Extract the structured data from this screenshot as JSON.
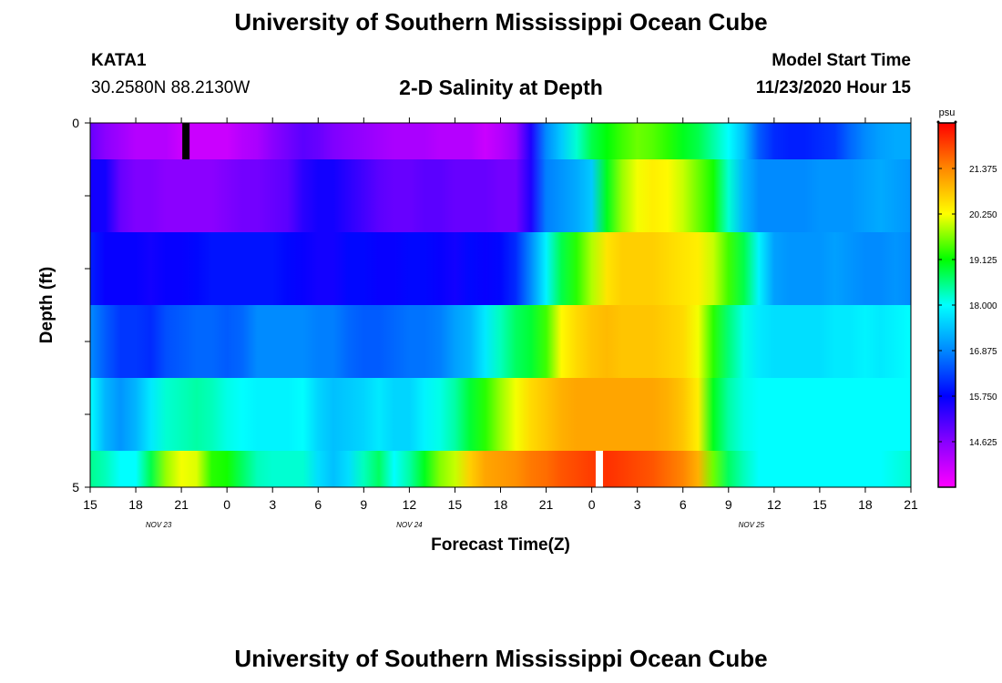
{
  "header": {
    "title": "University of Southern Mississippi Ocean Cube",
    "station_id": "KATA1",
    "station_coords": "30.2580N 88.2130W",
    "subtitle": "2-D Salinity at Depth",
    "model_start_label": "Model Start Time",
    "model_start_value": "11/23/2020 Hour 15"
  },
  "footer": {
    "title": "University of Southern Mississippi Ocean Cube"
  },
  "chart_data": {
    "type": "heatmap",
    "title": "2-D Salinity at Depth",
    "xlabel": "Forecast Time(Z)",
    "ylabel": "Depth (ft)",
    "x_ticks": [
      "15",
      "18",
      "21",
      "0",
      "3",
      "6",
      "9",
      "12",
      "15",
      "18",
      "21",
      "0",
      "3",
      "6",
      "9",
      "12",
      "15",
      "18",
      "21"
    ],
    "x_tick_hours": [
      0,
      3,
      6,
      9,
      12,
      15,
      18,
      21,
      24,
      27,
      30,
      33,
      36,
      39,
      42,
      45,
      48,
      51,
      54
    ],
    "date_labels": [
      {
        "text": "NOV 23",
        "hour": 4.5
      },
      {
        "text": "NOV 24",
        "hour": 21
      },
      {
        "text": "NOV 25",
        "hour": 43.5
      }
    ],
    "y_ticks": [
      "0",
      "5"
    ],
    "ylim": [
      0,
      5
    ],
    "xlim_hours": [
      0,
      54
    ],
    "colorbar": {
      "unit": "psu",
      "labels": [
        "21.375",
        "20.250",
        "19.125",
        "18.000",
        "16.875",
        "15.750",
        "14.625"
      ],
      "range": [
        13.5,
        22.5
      ],
      "colors": [
        "#ff00ff",
        "#8800ff",
        "#0000ff",
        "#0088ff",
        "#00ffff",
        "#00ff00",
        "#ffff00",
        "#ff8800",
        "#ff0000"
      ]
    },
    "layers": [
      {
        "depth": [
          0.0,
          0.5
        ],
        "hours": [
          0,
          1,
          2,
          3,
          4,
          5,
          6,
          7,
          8,
          9,
          10,
          11,
          12,
          13,
          14,
          15,
          16,
          17,
          18,
          19,
          20,
          21,
          22,
          23,
          24,
          25,
          26,
          27,
          28,
          29,
          30,
          31,
          32,
          33,
          34,
          35,
          36,
          37,
          38,
          39,
          40,
          41,
          42,
          43,
          44,
          45,
          46,
          47,
          48,
          49,
          50,
          51,
          52,
          53,
          54
        ],
        "values": [
          14.9,
          14.6,
          14.4,
          14.2,
          14.2,
          14.2,
          14.0,
          14.0,
          14.0,
          14.0,
          14.2,
          14.3,
          14.6,
          14.8,
          15.0,
          14.9,
          14.7,
          14.6,
          14.5,
          14.4,
          14.3,
          14.3,
          14.3,
          14.2,
          14.2,
          14.2,
          14.0,
          14.2,
          14.5,
          15.5,
          16.9,
          17.5,
          18.2,
          18.8,
          19.1,
          19.4,
          19.6,
          19.5,
          19.3,
          19.0,
          18.8,
          18.4,
          18.0,
          17.4,
          16.5,
          16.1,
          16.0,
          16.0,
          16.1,
          16.2,
          16.6,
          16.9,
          17.1,
          17.2,
          17.2
        ]
      },
      {
        "depth": [
          0.5,
          1.5
        ],
        "hours": [
          0,
          1,
          2,
          3,
          4,
          5,
          6,
          7,
          8,
          9,
          10,
          11,
          12,
          13,
          14,
          15,
          16,
          17,
          18,
          19,
          20,
          21,
          22,
          23,
          24,
          25,
          26,
          27,
          28,
          29,
          30,
          31,
          32,
          33,
          34,
          35,
          36,
          37,
          38,
          39,
          40,
          41,
          42,
          43,
          44,
          45,
          46,
          47,
          48,
          49,
          50,
          51,
          52,
          53,
          54
        ],
        "values": [
          15.6,
          15.6,
          14.9,
          14.7,
          14.7,
          14.6,
          14.6,
          14.6,
          14.6,
          14.7,
          14.8,
          14.8,
          14.9,
          15.0,
          15.4,
          15.6,
          15.6,
          15.4,
          15.2,
          15.0,
          14.9,
          14.9,
          15.0,
          15.0,
          14.9,
          14.9,
          14.9,
          14.8,
          14.8,
          15.5,
          16.8,
          17.0,
          17.2,
          17.5,
          19.0,
          19.8,
          20.2,
          20.4,
          20.3,
          20.0,
          19.6,
          19.2,
          18.2,
          17.3,
          16.9,
          16.9,
          16.9,
          16.9,
          17.0,
          17.0,
          17.0,
          17.1,
          17.2,
          17.1,
          17.0
        ]
      },
      {
        "depth": [
          1.5,
          2.5
        ],
        "hours": [
          0,
          1,
          2,
          3,
          4,
          5,
          6,
          7,
          8,
          9,
          10,
          11,
          12,
          13,
          14,
          15,
          16,
          17,
          18,
          19,
          20,
          21,
          22,
          23,
          24,
          25,
          26,
          27,
          28,
          29,
          30,
          31,
          32,
          33,
          34,
          35,
          36,
          37,
          38,
          39,
          40,
          41,
          42,
          43,
          44,
          45,
          46,
          47,
          48,
          49,
          50,
          51,
          52,
          53,
          54
        ],
        "values": [
          16.0,
          15.7,
          15.7,
          15.7,
          15.6,
          15.7,
          15.7,
          15.8,
          15.9,
          15.9,
          15.9,
          15.9,
          15.9,
          15.8,
          15.7,
          15.6,
          15.6,
          15.8,
          15.8,
          15.7,
          15.7,
          15.8,
          15.8,
          15.7,
          15.6,
          15.8,
          15.7,
          15.8,
          16.1,
          16.9,
          17.9,
          18.8,
          19.3,
          19.9,
          20.5,
          20.7,
          20.7,
          20.7,
          20.6,
          20.5,
          20.4,
          20.0,
          19.4,
          18.8,
          17.9,
          17.1,
          17.0,
          17.0,
          17.0,
          17.1,
          17.0,
          16.9,
          16.9,
          17.0,
          16.9
        ]
      },
      {
        "depth": [
          2.5,
          3.5
        ],
        "hours": [
          0,
          1,
          2,
          3,
          4,
          5,
          6,
          7,
          8,
          9,
          10,
          11,
          12,
          13,
          14,
          15,
          16,
          17,
          18,
          19,
          20,
          21,
          22,
          23,
          24,
          25,
          26,
          27,
          28,
          29,
          30,
          31,
          32,
          33,
          34,
          35,
          36,
          37,
          38,
          39,
          40,
          41,
          42,
          43,
          44,
          45,
          46,
          47,
          48,
          49,
          50,
          51,
          52,
          53,
          54
        ],
        "values": [
          16.9,
          16.5,
          16.2,
          16.2,
          16.1,
          16.4,
          16.5,
          16.6,
          16.6,
          16.5,
          16.6,
          16.9,
          16.9,
          16.9,
          16.9,
          16.8,
          16.8,
          16.6,
          16.5,
          16.5,
          16.6,
          16.7,
          16.7,
          16.8,
          17.1,
          17.3,
          17.8,
          18.3,
          18.7,
          18.9,
          19.4,
          20.3,
          20.6,
          20.8,
          20.9,
          20.8,
          20.8,
          20.8,
          20.7,
          20.6,
          20.2,
          19.3,
          18.6,
          18.1,
          17.8,
          17.7,
          17.7,
          17.7,
          17.7,
          17.8,
          17.8,
          17.9,
          17.8,
          17.9,
          18.0
        ]
      },
      {
        "depth": [
          3.5,
          4.5
        ],
        "hours": [
          0,
          1,
          2,
          3,
          4,
          5,
          6,
          7,
          8,
          9,
          10,
          11,
          12,
          13,
          14,
          15,
          16,
          17,
          18,
          19,
          20,
          21,
          22,
          23,
          24,
          25,
          26,
          27,
          28,
          29,
          30,
          31,
          32,
          33,
          34,
          35,
          36,
          37,
          38,
          39,
          40,
          41,
          42,
          43,
          44,
          45,
          46,
          47,
          48,
          49,
          50,
          51,
          52,
          53,
          54
        ],
        "values": [
          18.0,
          17.3,
          17.0,
          17.3,
          17.8,
          18.2,
          18.3,
          18.4,
          18.3,
          18.1,
          18.0,
          17.9,
          17.9,
          17.9,
          18.0,
          17.6,
          17.4,
          17.5,
          17.6,
          17.8,
          17.6,
          17.6,
          17.9,
          18.1,
          18.4,
          18.9,
          19.3,
          19.8,
          20.2,
          20.6,
          20.8,
          21.0,
          21.1,
          21.1,
          21.1,
          21.1,
          21.1,
          21.1,
          21.0,
          20.8,
          20.4,
          19.0,
          18.4,
          18.1,
          18.0,
          18.0,
          18.0,
          18.0,
          18.0,
          18.0,
          18.0,
          18.0,
          18.0,
          18.0,
          18.0
        ]
      },
      {
        "depth": [
          4.5,
          5.0
        ],
        "hours": [
          0,
          1,
          2,
          3,
          4,
          5,
          6,
          7,
          8,
          9,
          10,
          11,
          12,
          13,
          14,
          15,
          16,
          17,
          18,
          19,
          20,
          21,
          22,
          23,
          24,
          25,
          26,
          27,
          28,
          29,
          30,
          31,
          32,
          33,
          34,
          35,
          36,
          37,
          38,
          39,
          40,
          41,
          42,
          43,
          44,
          45,
          46,
          47,
          48,
          49,
          50,
          51,
          52,
          53,
          54
        ],
        "values": [
          18.5,
          18.3,
          18.0,
          18.0,
          18.8,
          19.8,
          20.2,
          20.1,
          19.3,
          19.2,
          18.7,
          18.3,
          18.2,
          18.2,
          18.2,
          17.7,
          17.4,
          17.7,
          18.3,
          18.7,
          18.0,
          18.4,
          19.0,
          19.7,
          20.0,
          20.7,
          21.1,
          21.2,
          21.3,
          21.5,
          21.6,
          21.8,
          21.9,
          22.0,
          22.1,
          22.0,
          21.9,
          21.8,
          21.6,
          21.4,
          21.0,
          19.6,
          18.7,
          18.3,
          18.0,
          18.0,
          18.0,
          18.0,
          18.0,
          18.0,
          18.0,
          18.0,
          18.0,
          18.1,
          18.2
        ]
      }
    ],
    "markers": [
      {
        "hour": 6.3,
        "depth_from": 0,
        "depth_to": 0.5,
        "color": "#000000"
      },
      {
        "hour": 33.5,
        "depth_from": 4.5,
        "depth_to": 5.0,
        "color": "#ffffff"
      }
    ]
  }
}
